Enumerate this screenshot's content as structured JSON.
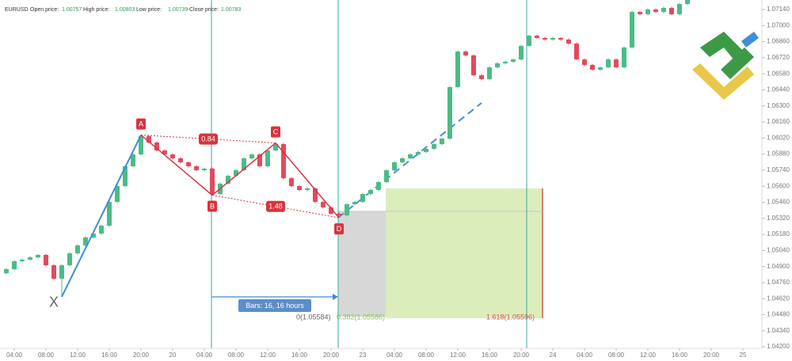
{
  "chart_data": {
    "type": "candlestick",
    "symbol": "EURUSD",
    "info": [
      {
        "label": "Open price:",
        "value": 1.00757
      },
      {
        "label": "High price:",
        "value": 1.00803
      },
      {
        "label": "Low price:",
        "value": 1.00739
      },
      {
        "label": "Close price:",
        "value": 1.00783
      }
    ],
    "up_color": "#4dbb86",
    "down_color": "#e24a5e",
    "x": [
      3,
      4,
      5,
      6,
      7,
      8,
      9,
      10,
      11,
      12,
      13,
      14,
      15,
      16,
      17,
      18,
      19,
      20,
      21,
      22,
      23,
      24,
      25,
      26,
      27,
      28,
      29,
      30,
      31,
      32,
      33,
      34,
      35,
      36,
      37,
      38,
      39,
      40,
      41,
      42,
      43,
      44,
      45,
      46,
      47,
      48,
      49,
      50,
      51,
      52,
      53,
      54,
      55,
      56,
      57,
      58,
      59,
      60,
      61,
      62,
      63,
      64,
      65,
      66,
      67,
      68,
      69,
      70,
      71,
      72,
      73,
      74,
      75,
      76,
      77,
      78,
      79,
      80,
      81,
      82,
      83,
      84,
      85,
      86,
      87,
      88,
      89
    ],
    "open": [
      1.04842,
      1.04877,
      1.04946,
      1.0496,
      1.0498,
      1.05001,
      1.04911,
      1.04794,
      1.04911,
      1.05015,
      1.05084,
      1.05153,
      1.05187,
      1.05256,
      1.05463,
      1.05601,
      1.05774,
      1.05877,
      1.06036,
      1.05981,
      1.05912,
      1.05877,
      1.05843,
      1.05808,
      1.05774,
      1.05739,
      1.05753,
      1.05532,
      1.05622,
      1.05691,
      1.05739,
      1.05843,
      1.05877,
      1.05774,
      1.05912,
      1.05967,
      1.0567,
      1.05601,
      1.05567,
      1.05581,
      1.05463,
      1.05415,
      1.0536,
      1.05346,
      1.05443,
      1.05463,
      1.05532,
      1.05567,
      1.05636,
      1.05739,
      1.05808,
      1.05843,
      1.05877,
      1.05898,
      1.05926,
      1.05967,
      1.06015,
      1.06464,
      1.06774,
      1.0674,
      1.06567,
      1.06533,
      1.06636,
      1.06671,
      1.06685,
      1.06705,
      1.06823,
      1.06912,
      1.06892,
      1.06878,
      1.06892,
      1.06878,
      1.06843,
      1.06705,
      1.06657,
      1.06616,
      1.06636,
      1.06705,
      1.06636,
      1.06809,
      1.07119,
      1.07099,
      1.0714,
      1.07119,
      1.07154,
      1.07099,
      1.07188
    ],
    "high": [
      1.04887,
      1.04956,
      1.0497,
      1.0499,
      1.05011,
      1.05011,
      1.04921,
      1.04921,
      1.05025,
      1.05094,
      1.05163,
      1.05197,
      1.05266,
      1.05473,
      1.05611,
      1.05784,
      1.05887,
      1.06046,
      1.06046,
      1.05991,
      1.05922,
      1.05887,
      1.05853,
      1.05818,
      1.05784,
      1.05763,
      1.05763,
      1.05632,
      1.05701,
      1.05749,
      1.05853,
      1.05887,
      1.05887,
      1.05922,
      1.05977,
      1.05977,
      1.0568,
      1.05611,
      1.05591,
      1.05591,
      1.05473,
      1.05425,
      1.0537,
      1.05453,
      1.05473,
      1.05542,
      1.05577,
      1.05646,
      1.05749,
      1.05818,
      1.05853,
      1.05887,
      1.05908,
      1.05936,
      1.05977,
      1.06025,
      1.06474,
      1.06784,
      1.06784,
      1.0675,
      1.06577,
      1.06646,
      1.06681,
      1.06695,
      1.06715,
      1.06833,
      1.06922,
      1.06922,
      1.06902,
      1.06902,
      1.06902,
      1.06888,
      1.06853,
      1.06715,
      1.06667,
      1.06646,
      1.06715,
      1.06715,
      1.06819,
      1.07129,
      1.07129,
      1.0715,
      1.0715,
      1.07164,
      1.07164,
      1.07198,
      1.07233
    ],
    "low": [
      1.04832,
      1.04867,
      1.04936,
      1.0495,
      1.0497,
      1.04901,
      1.04784,
      1.04636,
      1.04901,
      1.05005,
      1.05074,
      1.05143,
      1.05177,
      1.05246,
      1.05453,
      1.05591,
      1.05764,
      1.05867,
      1.05971,
      1.05902,
      1.05867,
      1.05833,
      1.05798,
      1.05764,
      1.05729,
      1.05729,
      1.05522,
      1.05522,
      1.05612,
      1.05681,
      1.05729,
      1.05833,
      1.05764,
      1.05764,
      1.05902,
      1.0566,
      1.05591,
      1.05557,
      1.05557,
      1.05453,
      1.05405,
      1.0535,
      1.05325,
      1.05336,
      1.05433,
      1.05453,
      1.05522,
      1.05557,
      1.05626,
      1.05729,
      1.05798,
      1.05833,
      1.05867,
      1.05888,
      1.05916,
      1.05957,
      1.06005,
      1.06454,
      1.0673,
      1.06557,
      1.06523,
      1.06523,
      1.06626,
      1.06661,
      1.06675,
      1.06695,
      1.06813,
      1.06882,
      1.06868,
      1.06868,
      1.06868,
      1.06833,
      1.06695,
      1.06647,
      1.06606,
      1.06606,
      1.06626,
      1.06626,
      1.06626,
      1.06799,
      1.07089,
      1.07089,
      1.07109,
      1.07109,
      1.07089,
      1.07089,
      1.07178
    ],
    "close": [
      1.04877,
      1.04946,
      1.0496,
      1.0498,
      1.05001,
      1.04911,
      1.04794,
      1.04911,
      1.05015,
      1.05084,
      1.05153,
      1.05187,
      1.05256,
      1.05463,
      1.05601,
      1.05774,
      1.05877,
      1.06036,
      1.05981,
      1.05912,
      1.05877,
      1.05843,
      1.05808,
      1.05774,
      1.05739,
      1.05753,
      1.05532,
      1.05622,
      1.05691,
      1.05739,
      1.05843,
      1.05877,
      1.05774,
      1.05912,
      1.05967,
      1.0567,
      1.05601,
      1.05567,
      1.05581,
      1.05463,
      1.05415,
      1.0536,
      1.05346,
      1.05443,
      1.05463,
      1.05532,
      1.05567,
      1.05636,
      1.05739,
      1.05808,
      1.05843,
      1.05877,
      1.05898,
      1.05926,
      1.05967,
      1.06015,
      1.06464,
      1.06774,
      1.0674,
      1.06567,
      1.06533,
      1.06636,
      1.06671,
      1.06685,
      1.06705,
      1.06823,
      1.06912,
      1.06892,
      1.06878,
      1.06892,
      1.06878,
      1.06843,
      1.06705,
      1.06657,
      1.06616,
      1.06636,
      1.06705,
      1.06636,
      1.06809,
      1.07119,
      1.07099,
      1.0714,
      1.07119,
      1.07154,
      1.07099,
      1.07188,
      1.07223
    ],
    "pattern": [
      {
        "label": "X",
        "x": 10,
        "price": 1.04636
      },
      {
        "label": "A",
        "x": 20,
        "price": 1.06046
      },
      {
        "label": "B",
        "x": 29,
        "price": 1.05522
      },
      {
        "label": "C",
        "x": 37,
        "price": 1.05977
      },
      {
        "label": "D",
        "x": 45,
        "price": 1.05325
      }
    ],
    "ratios": [
      0.84,
      1.48
    ],
    "bars_label": "Bars: 16, 16 hours",
    "fib_labels": [
      "0(1.05584)",
      "0.382(1.05586)",
      "1.618(1.05596)"
    ],
    "xlim": [
      2.2,
      98.4
    ],
    "ylim": [
      1.04187,
      1.07223
    ],
    "xticks": [
      {
        "value": 4,
        "label": "04:00"
      },
      {
        "value": 8,
        "label": "08:00"
      },
      {
        "value": 12,
        "label": "12:00"
      },
      {
        "value": 16,
        "label": "16:00"
      },
      {
        "value": 20,
        "label": "20:00"
      },
      {
        "value": 24,
        "label": "20"
      },
      {
        "value": 28,
        "label": "04:00"
      },
      {
        "value": 32,
        "label": "08:00"
      },
      {
        "value": 36,
        "label": "12:00"
      },
      {
        "value": 40,
        "label": "16:00"
      },
      {
        "value": 44,
        "label": "20:00"
      },
      {
        "value": 48,
        "label": "23"
      },
      {
        "value": 52,
        "label": "04:00"
      },
      {
        "value": 56,
        "label": "08:00"
      },
      {
        "value": 60,
        "label": "12:00"
      },
      {
        "value": 64,
        "label": "16:00"
      },
      {
        "value": 68,
        "label": "20:00"
      },
      {
        "value": 72,
        "label": "24"
      },
      {
        "value": 76,
        "label": "04:00"
      },
      {
        "value": 80,
        "label": "08:00"
      },
      {
        "value": 84,
        "label": "12:00"
      },
      {
        "value": 88,
        "label": "16:00"
      },
      {
        "value": 92,
        "label": "20:00"
      },
      {
        "value": 96,
        "label": "25"
      }
    ],
    "yticks": [
      {
        "value": 1.0714,
        "label": "1.07140"
      },
      {
        "value": 1.07,
        "label": "1.07000"
      },
      {
        "value": 1.0686,
        "label": "1.06860"
      },
      {
        "value": 1.0672,
        "label": "1.06720"
      },
      {
        "value": 1.0658,
        "label": "1.06580"
      },
      {
        "value": 1.0644,
        "label": "1.06440"
      },
      {
        "value": 1.063,
        "label": "1.06300"
      },
      {
        "value": 1.0616,
        "label": "1.06160"
      },
      {
        "value": 1.0602,
        "label": "1.06020"
      },
      {
        "value": 1.0588,
        "label": "1.05880"
      },
      {
        "value": 1.0574,
        "label": "1.05740"
      },
      {
        "value": 1.056,
        "label": "1.05600"
      },
      {
        "value": 1.0546,
        "label": "1.05460"
      },
      {
        "value": 1.0532,
        "label": "1.05320"
      },
      {
        "value": 1.0518,
        "label": "1.05180"
      },
      {
        "value": 1.0504,
        "label": "1.05040"
      },
      {
        "value": 1.049,
        "label": "1.04900"
      },
      {
        "value": 1.0476,
        "label": "1.04760"
      },
      {
        "value": 1.0462,
        "label": "1.04620"
      },
      {
        "value": 1.0448,
        "label": "1.04480"
      },
      {
        "value": 1.0434,
        "label": "1.04340"
      },
      {
        "value": 1.042,
        "label": "1.04200"
      }
    ],
    "grid": false
  }
}
